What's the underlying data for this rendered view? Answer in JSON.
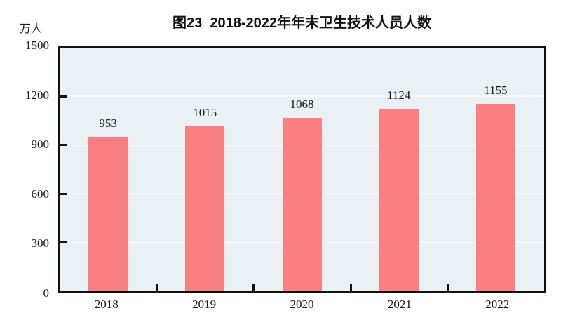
{
  "chart_data": {
    "type": "bar",
    "title": "图23  2018-2022年年末卫生技术人员人数",
    "unit_label": "万人",
    "categories": [
      "2018",
      "2019",
      "2020",
      "2021",
      "2022"
    ],
    "values": [
      953,
      1015,
      1068,
      1124,
      1155
    ],
    "xlabel": "",
    "ylabel": "万人",
    "ylim": [
      0,
      1500
    ],
    "yticks": [
      0,
      300,
      600,
      900,
      1200,
      1500
    ],
    "grid": true,
    "legend": "none",
    "colors": {
      "bar": "#f97f80",
      "plot_background": "#eaf1f5",
      "gridline": "#f7fafc",
      "axis": "#111111",
      "text": "#1a1a1a"
    }
  }
}
